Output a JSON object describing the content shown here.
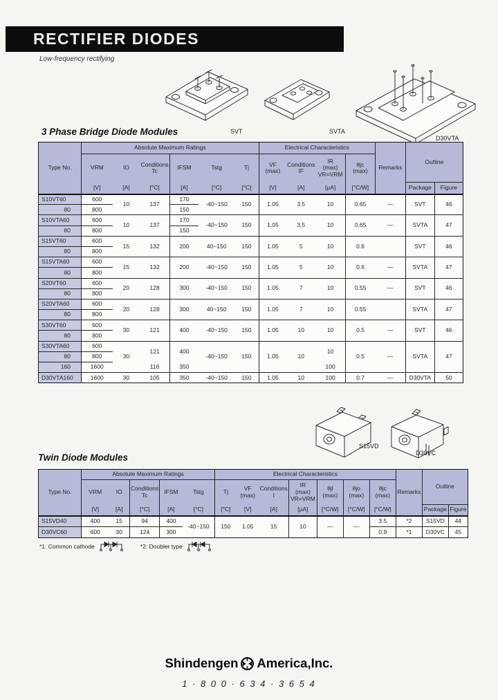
{
  "header": {
    "title": "RECTIFIER DIODES",
    "subtitle": "Low-frequency rectifying"
  },
  "sections": {
    "bridge_heading": "3 Phase Bridge Diode Modules",
    "twin_heading": "Twin Diode Modules"
  },
  "drawing_labels": {
    "svt": "SVT",
    "svta": "SVTA",
    "d30vta": "D30VTA",
    "s15vd": "S15VD",
    "d30vc": "D30VC"
  },
  "footnotes": {
    "note1": "*1: Common cathode",
    "note2": "*2: Doubler type"
  },
  "footer": {
    "brand_left": "Shindengen",
    "brand_right": "America,Inc.",
    "phone": "1 · 8 0 0 · 6 3 4 · 3 6 5 4"
  },
  "colors": {
    "header_fill": "#b6b9d8",
    "type_column_fill": "#c7c9e1",
    "bar_background": "#0d0d0d"
  },
  "t1": {
    "title_col": "Type No.",
    "group_abs": "Absolute Maximum Ratings",
    "group_elec": "Electrical Characteristics",
    "remarks": "Remarks",
    "outline": "Outline",
    "cols": {
      "vrm": "VRM",
      "io": "IO",
      "tc": "Conditions\nTc",
      "ifsm": "IFSM",
      "tstg": "Tstg",
      "tj": "Tj",
      "vf": "VF\n(max)",
      "if": "Conditions\nIF",
      "ir": "IR\n(max)\nVR=VRM",
      "thjc": "θjc\n(max)",
      "pkg": "Package",
      "fig": "Figure"
    },
    "units": {
      "vrm": "[V]",
      "io": "[A]",
      "tc": "[°C]",
      "ifsm": "[A]",
      "tstg": "[°C]",
      "tj": "[°C]",
      "vf": "[V]",
      "if": "[A]",
      "ir": "[μA]",
      "thjc": "[°C/W]"
    },
    "rows": [
      {
        "type": "S10VT60",
        "vrm": "600",
        "io": "10",
        "tc": "137",
        "ifsm": "170",
        "tstg": "-40~150",
        "tj": "150",
        "vf": "1.05",
        "if": "3.5",
        "ir": "10",
        "thjc": "0.65",
        "rem": "—",
        "pkg": "SVT",
        "fig": "46"
      },
      {
        "type": "80",
        "vrm": "800",
        "ifsm": "150"
      },
      {
        "type": "S10VTA60",
        "vrm": "600",
        "io": "10",
        "tc": "137",
        "ifsm": "170",
        "tstg": "-40~150",
        "tj": "150",
        "vf": "1.05",
        "if": "3.5",
        "ir": "10",
        "thjc": "0.65",
        "rem": "—",
        "pkg": "SVTA",
        "fig": "47"
      },
      {
        "type": "80",
        "vrm": "800",
        "ifsm": "150"
      },
      {
        "type": "S15VT60",
        "vrm": "600",
        "io": "15",
        "tc": "132",
        "ifsm": "200",
        "tstg": "40~150",
        "tj": "150",
        "vf": "1.05",
        "if": "5",
        "ir": "10",
        "thjc": "0.6",
        "rem": "",
        "pkg": "SVT",
        "fig": "46"
      },
      {
        "type": "80",
        "vrm": "800"
      },
      {
        "type": "S15VTA60",
        "vrm": "600",
        "io": "15",
        "tc": "132",
        "ifsm": "200",
        "tstg": "-40~150",
        "tj": "150",
        "vf": "1.05",
        "if": "5",
        "ir": "10",
        "thjc": "0.6",
        "rem": "—",
        "pkg": "SVTA",
        "fig": "47"
      },
      {
        "type": "80",
        "vrm": "800"
      },
      {
        "type": "S20VT60",
        "vrm": "600",
        "io": "20",
        "tc": "128",
        "ifsm": "300",
        "tstg": "-40~150",
        "tj": "150",
        "vf": "1.05",
        "if": "7",
        "ir": "10",
        "thjc": "0.55",
        "rem": "—",
        "pkg": "SVT",
        "fig": "46"
      },
      {
        "type": "80",
        "vrm": "800"
      },
      {
        "type": "S20VTA60",
        "vrm": "600",
        "io": "20",
        "tc": "128",
        "ifsm": "300",
        "tstg": "40~150",
        "tj": "150",
        "vf": "1.05",
        "if": "7",
        "ir": "10",
        "thjc": "0.55",
        "rem": "",
        "pkg": "SVTA",
        "fig": "47"
      },
      {
        "type": "80",
        "vrm": "800"
      },
      {
        "type": "S30VT60",
        "vrm": "600",
        "io": "30",
        "tc": "121",
        "ifsm": "400",
        "tstg": "-40~150",
        "tj": "150",
        "vf": "1.05",
        "if": "10",
        "ir": "10",
        "thjc": "0.5",
        "rem": "—",
        "pkg": "SVT",
        "fig": "46"
      },
      {
        "type": "80",
        "vrm": "800"
      },
      {
        "type": "S30VTA60",
        "vrm": "600",
        "io": "30",
        "tc": "121",
        "ifsm": "400",
        "tstg": "-40~150",
        "tj": "150",
        "vf": "1.05",
        "if": "10",
        "ir": "10",
        "thjc": "0.5",
        "rem": "—",
        "pkg": "SVTA",
        "fig": "47"
      },
      {
        "type": "80",
        "vrm": "800"
      },
      {
        "type": "160",
        "vrm": "1600",
        "tc": "116",
        "ifsm": "350",
        "ir": "100"
      },
      {
        "type": "D30VTA160",
        "vrm": "1600",
        "io": "30",
        "tc": "105",
        "ifsm": "350",
        "tstg": "-40~150",
        "tj": "150",
        "vf": "1.05",
        "if": "10",
        "ir": "100",
        "thjc": "0.7",
        "rem": "—",
        "pkg": "D30VTA",
        "fig": "50"
      }
    ]
  },
  "t2": {
    "title_col": "Type No.",
    "group_abs": "Absolute Maximum Ratings",
    "group_elec": "Electrical Characteristics",
    "remarks": "Remarks",
    "outline": "Outline",
    "cols": {
      "vrm": "VRM",
      "io": "IO",
      "tc": "Conditions\nTc",
      "ifsm": "IFSM",
      "tstg": "Tstg",
      "tj": "Tj",
      "vf": "VF\n(max)",
      "ci": "Conditions\nI",
      "ir": "IR\n(max)\nVR=VRM",
      "thjl": "θjl\n(max)",
      "thjo": "θjo\n(max)",
      "thjc": "θjc\n(max)",
      "pkg": "Package",
      "fig": "Figure"
    },
    "units": {
      "vrm": "[V]",
      "io": "[A]",
      "tc": "[°C]",
      "ifsm": "[A]",
      "tstg": "[°C]",
      "tj": "[°C]",
      "vf": "[V]",
      "ci": "[A]",
      "ir": "[μA]",
      "thjl": "[°C/W]",
      "thjo": "[°C/W]",
      "thjc": "[°C/W]"
    },
    "rows": [
      {
        "type": "S15VD40",
        "vrm": "400",
        "io": "15",
        "tc": "94",
        "ifsm": "400",
        "tstg": "-40~150",
        "tj": "150",
        "vf": "1.05",
        "ci": "15",
        "ir": "10",
        "thjl": "—",
        "thjo": "—",
        "thjc": "3.5",
        "rem": "*2",
        "pkg": "S15VD",
        "fig": "44"
      },
      {
        "type": "D30VC60",
        "vrm": "600",
        "io": "30",
        "tc": "124",
        "ifsm": "300",
        "thjc": "0.9",
        "rem": "*1",
        "pkg": "D30VC",
        "fig": "45"
      }
    ]
  }
}
